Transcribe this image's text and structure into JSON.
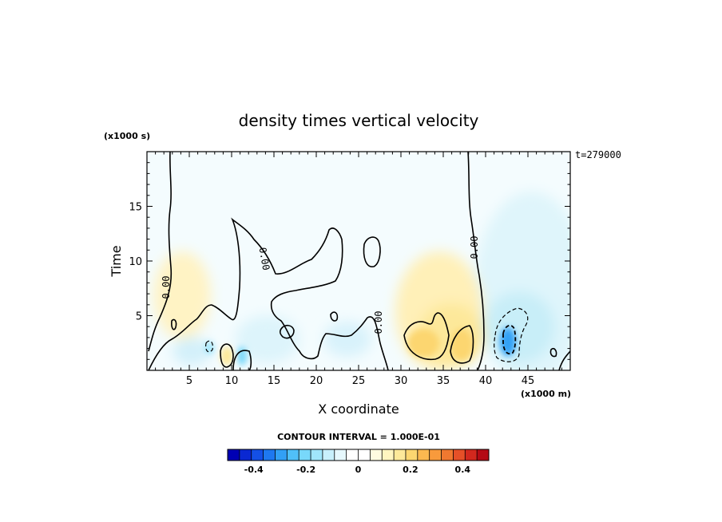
{
  "chart_data": {
    "type": "heatmap",
    "title": "density times vertical velocity",
    "xlabel": "X coordinate",
    "ylabel": "Time",
    "x_unit": "(x1000 m)",
    "y_unit": "(x1000 s)",
    "timestamp": "t=279000",
    "xlim": [
      0,
      50
    ],
    "ylim": [
      0,
      20
    ],
    "x_ticks": [
      5,
      10,
      15,
      20,
      25,
      30,
      35,
      40,
      45
    ],
    "y_ticks": [
      5,
      10,
      15
    ],
    "contour_interval": "CONTOUR INTERVAL = 1.000E-01",
    "zero_contour_label": "0.00",
    "colorbar": {
      "min": -0.5,
      "max": 0.5,
      "ticks": [
        -0.4,
        -0.2,
        0,
        0.2,
        0.4
      ],
      "tick_labels": [
        "-0.4",
        "-0.2",
        "0",
        "0.2",
        "0.4"
      ],
      "colors": [
        "#0000b4",
        "#0a28d2",
        "#1450e6",
        "#1e78f0",
        "#32a0f5",
        "#50c0f8",
        "#78d8fa",
        "#a0e6fb",
        "#c8f0fc",
        "#e6f8fd",
        "#ffffff",
        "#ffffff",
        "#fffbe0",
        "#fff5c0",
        "#fde99a",
        "#fcd670",
        "#fbb850",
        "#f89a3c",
        "#f07830",
        "#e65028",
        "#d2281e",
        "#b40a14"
      ]
    },
    "features": [
      {
        "name": "positive-cell-1",
        "x": 3.5,
        "y": 5,
        "value": 0.06
      },
      {
        "name": "positive-cell-2",
        "x": 33,
        "y": 5,
        "value": 0.18
      },
      {
        "name": "positive-cell-3",
        "x": 36,
        "y": 2,
        "value": 0.2
      },
      {
        "name": "negative-cell-1",
        "x": 42.5,
        "y": 2.5,
        "value": -0.3
      },
      {
        "name": "negative-cell-2",
        "x": 11,
        "y": 2,
        "value": -0.12
      }
    ]
  }
}
